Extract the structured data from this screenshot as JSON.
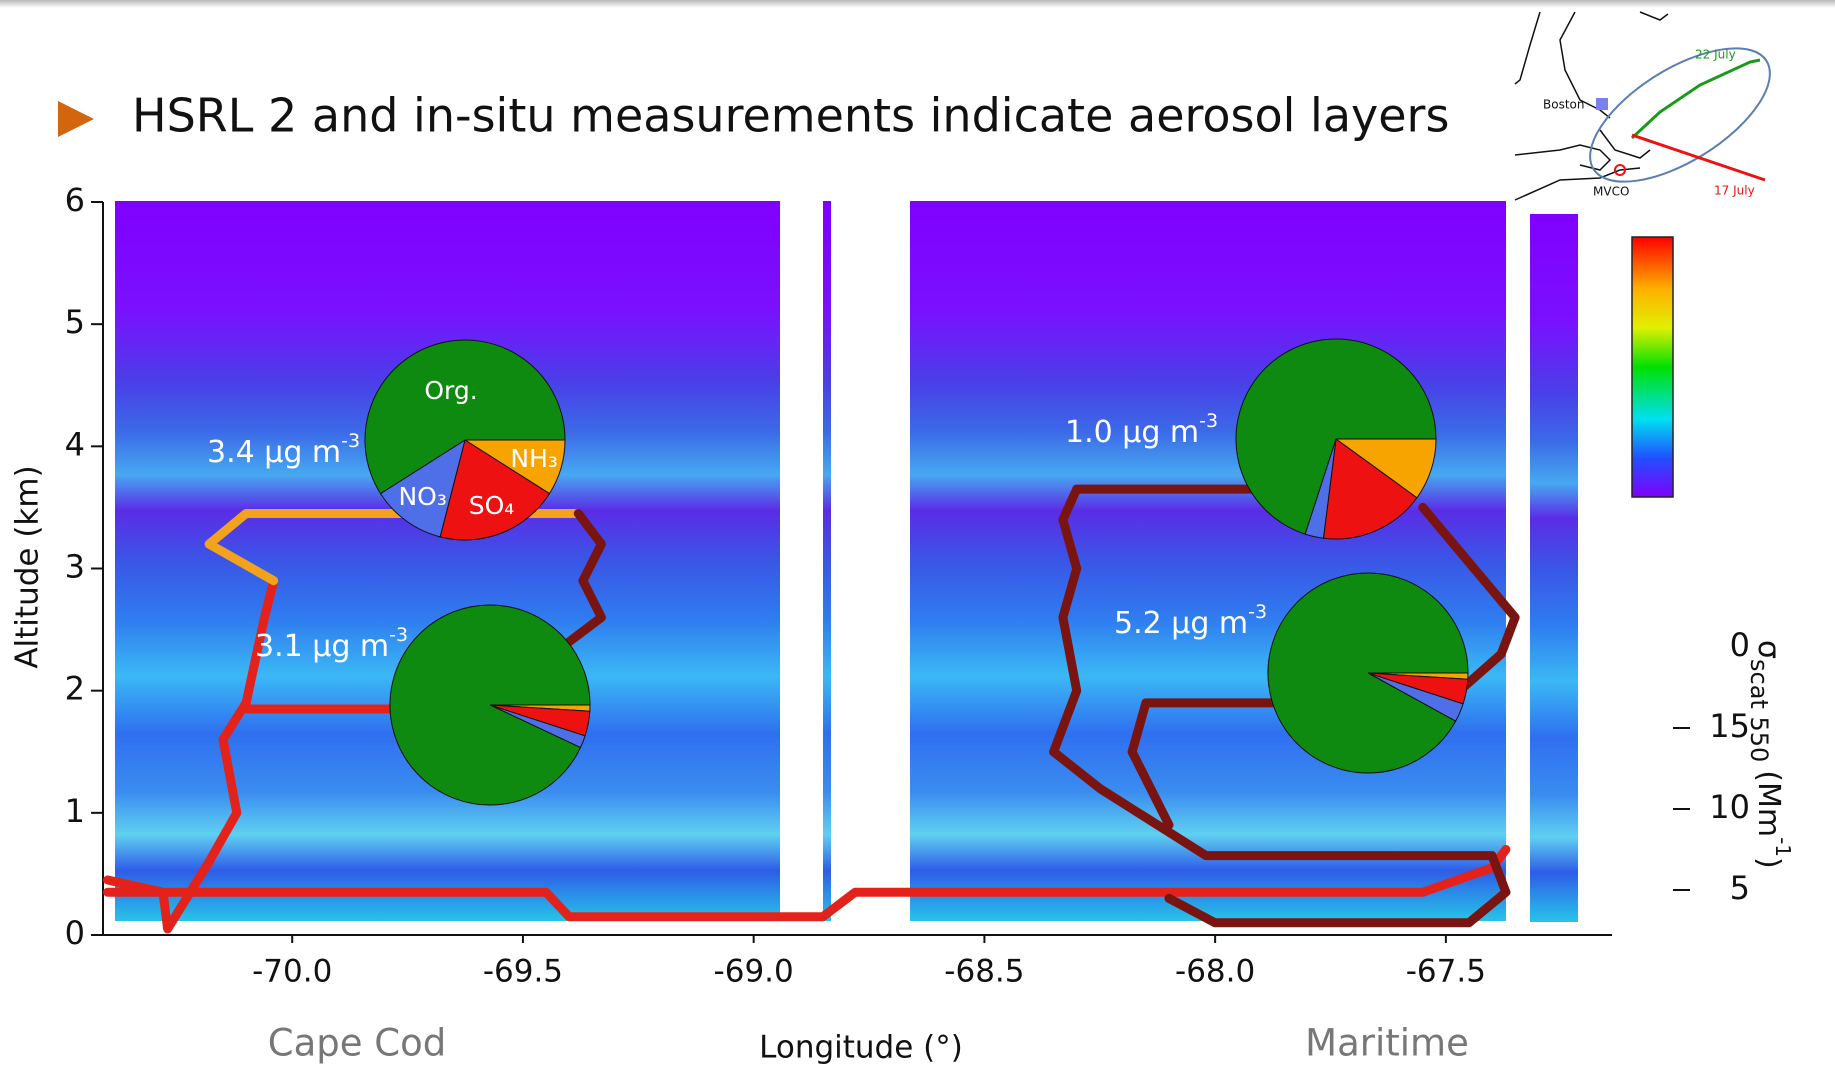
{
  "title": "HSRL 2 and in-situ measurements indicate aerosol layers",
  "chart_data": {
    "type": "curtain",
    "x_label": "Longitude (°)",
    "y_label": "Altitude (km)",
    "xlim": [
      -70.41,
      -67.14
    ],
    "xticks": [
      {
        "value": -70,
        "label": "-70.0"
      },
      -69.5,
      {
        "value": -69,
        "label": "-69.0"
      },
      -68.5,
      {
        "value": -68,
        "label": "-68.0"
      },
      -67.5
    ],
    "ylim": [
      0,
      6
    ],
    "yticks": [
      0,
      1,
      2,
      3,
      4,
      5,
      6
    ],
    "region_labels": [
      "Cape Cod",
      "Maritime"
    ],
    "tracks": [
      {
        "color": "#e3221b",
        "x": [
          -70.4,
          -70.28,
          -70.27,
          -70.18,
          -70.12,
          -70.15,
          -70.1,
          -70.06,
          -70.04,
          null,
          -70.1,
          -69.7,
          null,
          -70.4,
          -70.1,
          -69.45,
          -69.4,
          -69.0,
          -68.85,
          -68.78,
          -68.7,
          -68.3,
          -68.05,
          -67.55,
          -67.4,
          -67.37
        ],
        "y": [
          0.45,
          0.35,
          0.05,
          0.6,
          1.0,
          1.6,
          1.9,
          2.6,
          2.9,
          null,
          1.85,
          1.85,
          null,
          0.35,
          0.35,
          0.35,
          0.15,
          0.15,
          0.15,
          0.35,
          0.35,
          0.35,
          0.35,
          0.35,
          0.55,
          0.7
        ]
      },
      {
        "color": "#f2a21c",
        "x": [
          -70.04,
          -70.18,
          -70.1,
          -69.6,
          -69.38
        ],
        "y": [
          2.9,
          3.2,
          3.45,
          3.45,
          3.45
        ]
      },
      {
        "color": "#7a1410",
        "x": [
          -69.38,
          -69.33,
          -69.37,
          -69.33,
          -69.4,
          null,
          -67.8,
          -68.3,
          -68.33,
          -68.3,
          -68.33,
          -68.3,
          -68.35,
          -68.25,
          -68.02,
          -67.4,
          -67.37,
          -67.45,
          -68.0,
          -68.1,
          null,
          -67.55,
          -67.35,
          -67.38,
          -67.5,
          -68.15,
          -68.18,
          -68.1
        ],
        "y": [
          3.45,
          3.2,
          2.9,
          2.6,
          2.4,
          null,
          3.65,
          3.65,
          3.4,
          3.0,
          2.6,
          2.0,
          1.5,
          1.2,
          0.65,
          0.65,
          0.35,
          0.1,
          0.1,
          0.3,
          null,
          3.5,
          2.6,
          2.3,
          1.9,
          1.9,
          1.5,
          0.9
        ]
      }
    ],
    "pie_categories": [
      "NH₃",
      "SO₄",
      "NO₃",
      "Org."
    ],
    "pie_colors": [
      "#f7a400",
      "#ee1111",
      "#4f6fe8",
      "#0e8a10"
    ],
    "pies": [
      {
        "label": "3.4 μg m",
        "label_exp": "-3",
        "values": [
          9,
          20,
          12,
          59
        ],
        "show_labels": true
      },
      {
        "label": "3.1 μg m",
        "label_exp": "-3",
        "values": [
          1,
          4,
          2,
          93
        ],
        "show_labels": false
      },
      {
        "label": "1.0 μg m",
        "label_exp": "-3",
        "values": [
          10,
          17,
          3,
          70
        ],
        "show_labels": false
      },
      {
        "label": "5.2 μg m",
        "label_exp": "-3",
        "values": [
          1,
          4,
          3,
          92
        ],
        "show_labels": false
      }
    ],
    "colorbar_ticks": [
      0,
      15,
      10,
      5
    ],
    "colorbar_label": [
      "σ",
      "scat 550",
      "(Mm",
      "-1",
      ")"
    ]
  },
  "map": {
    "labels": [
      "Boston",
      "MVCO",
      "22 July",
      "17 July"
    ]
  }
}
